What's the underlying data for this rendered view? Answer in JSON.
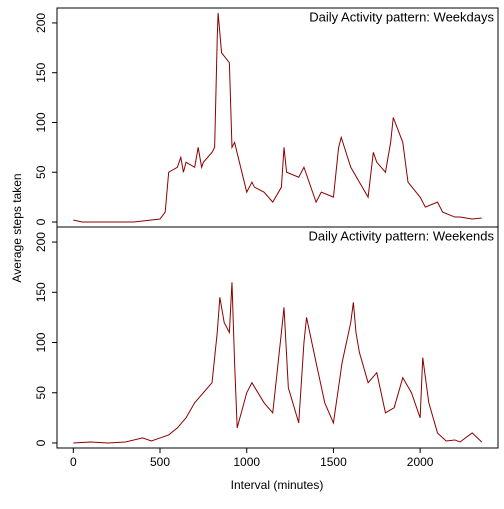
{
  "chart_data": [
    {
      "type": "line",
      "title": "Daily Activity pattern: Weekdays",
      "ylabel": "Average steps taken",
      "xlim": [
        -94,
        2449
      ],
      "ylim": [
        -5,
        215
      ],
      "yticks": [
        0,
        50,
        100,
        150,
        200
      ],
      "x": [
        0,
        50,
        100,
        150,
        200,
        250,
        300,
        350,
        400,
        450,
        500,
        530,
        550,
        600,
        620,
        635,
        650,
        700,
        720,
        740,
        750,
        800,
        815,
        830,
        835,
        845,
        855,
        900,
        915,
        930,
        1000,
        1030,
        1045,
        1100,
        1150,
        1200,
        1215,
        1230,
        1300,
        1330,
        1400,
        1430,
        1500,
        1530,
        1545,
        1600,
        1650,
        1700,
        1730,
        1750,
        1800,
        1830,
        1845,
        1900,
        1930,
        2000,
        2030,
        2100,
        2130,
        2200,
        2230,
        2300,
        2355
      ],
      "series": [
        {
          "name": "Weekdays",
          "color": "#8b0000",
          "values": [
            2,
            0,
            0,
            0,
            0,
            0,
            0,
            0,
            1,
            2,
            3,
            10,
            50,
            55,
            65,
            50,
            60,
            55,
            75,
            55,
            60,
            70,
            75,
            185,
            210,
            190,
            170,
            160,
            75,
            80,
            30,
            40,
            35,
            30,
            20,
            35,
            75,
            50,
            45,
            55,
            20,
            30,
            25,
            75,
            85,
            55,
            40,
            25,
            70,
            60,
            50,
            80,
            105,
            80,
            40,
            25,
            15,
            20,
            10,
            5,
            5,
            3,
            4
          ]
        }
      ]
    },
    {
      "type": "line",
      "title": "Daily Activity pattern: Weekends",
      "xlabel": "Interval (minutes)",
      "xlim": [
        -94,
        2449
      ],
      "ylim": [
        -5,
        215
      ],
      "yticks": [
        0,
        50,
        100,
        150,
        200
      ],
      "xticks": [
        0,
        500,
        1000,
        1500,
        2000
      ],
      "x": [
        0,
        100,
        200,
        300,
        400,
        450,
        500,
        550,
        600,
        650,
        700,
        800,
        830,
        845,
        870,
        900,
        915,
        930,
        945,
        1000,
        1030,
        1100,
        1150,
        1200,
        1215,
        1240,
        1300,
        1330,
        1345,
        1400,
        1450,
        1500,
        1550,
        1600,
        1615,
        1630,
        1650,
        1700,
        1750,
        1800,
        1850,
        1900,
        1950,
        2000,
        2015,
        2050,
        2100,
        2150,
        2200,
        2230,
        2300,
        2355
      ],
      "series": [
        {
          "name": "Weekends",
          "color": "#8b0000",
          "values": [
            0,
            1,
            0,
            1,
            5,
            2,
            5,
            8,
            15,
            25,
            40,
            60,
            110,
            145,
            120,
            110,
            160,
            80,
            15,
            50,
            60,
            40,
            30,
            110,
            135,
            55,
            20,
            100,
            125,
            80,
            40,
            20,
            80,
            120,
            140,
            110,
            90,
            60,
            70,
            30,
            35,
            65,
            50,
            25,
            85,
            40,
            10,
            2,
            3,
            1,
            10,
            1
          ]
        }
      ]
    }
  ]
}
